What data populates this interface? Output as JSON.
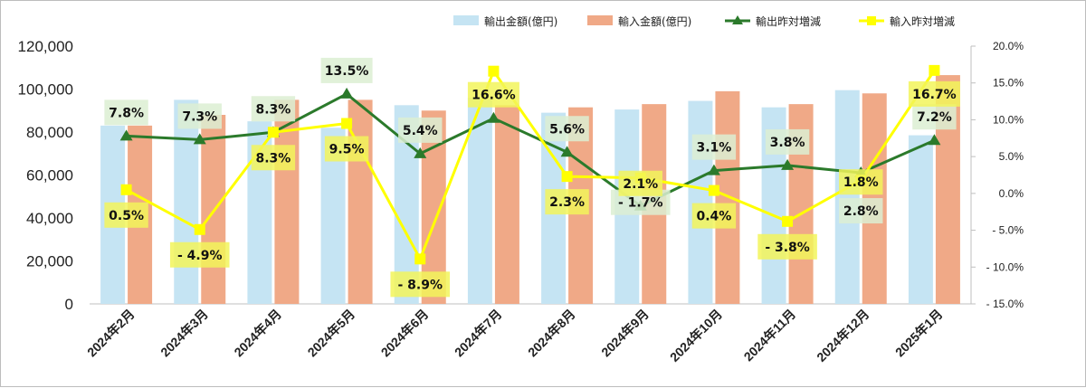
{
  "chart_data": {
    "type": "bar",
    "categories": [
      "2024年2月",
      "2024年3月",
      "2024年4月",
      "2024年5月",
      "2024年6月",
      "2024年7月",
      "2024年8月",
      "2024年9月",
      "2024年10月",
      "2024年11月",
      "2024年12月",
      "2025年1月"
    ],
    "series": [
      {
        "name": "輸出金額(億円)",
        "type": "bar",
        "axis": "left",
        "color": "#c5e4f3",
        "values": [
          83000,
          95000,
          85000,
          82000,
          92500,
          96000,
          89000,
          90500,
          94500,
          91500,
          99500,
          78500
        ]
      },
      {
        "name": "輸入金額(億円)",
        "type": "bar",
        "axis": "left",
        "color": "#f0a987",
        "values": [
          83000,
          88000,
          95000,
          95000,
          90000,
          92500,
          91500,
          93000,
          99000,
          93000,
          98000,
          106500
        ]
      },
      {
        "name": "輸出昨対増減",
        "type": "line",
        "axis": "right",
        "color": "#2b7a2b",
        "marker": "triangle",
        "values": [
          7.8,
          7.3,
          8.3,
          13.5,
          5.4,
          10.2,
          5.6,
          -1.7,
          3.1,
          3.8,
          2.8,
          7.2
        ],
        "labels": [
          "7.8%",
          "7.3%",
          "8.3%",
          "13.5%",
          "5.4%",
          "",
          "5.6%",
          "- 1.7%",
          "3.1%",
          "3.8%",
          "2.8%",
          "7.2%"
        ]
      },
      {
        "name": "輸入昨対増減",
        "type": "line",
        "axis": "right",
        "color": "#ffff00",
        "marker": "square",
        "values": [
          0.5,
          -4.9,
          8.3,
          9.5,
          -8.9,
          16.6,
          2.3,
          2.1,
          0.4,
          -3.8,
          1.8,
          16.7
        ],
        "labels": [
          "0.5%",
          "- 4.9%",
          "8.3%",
          "9.5%",
          "- 8.9%",
          "16.6%",
          "2.3%",
          "2.1%",
          "0.4%",
          "- 3.8%",
          "1.8%",
          "16.7%"
        ]
      }
    ],
    "y_left": {
      "ylim": [
        0,
        120000
      ],
      "ticks": [
        "0",
        "20,000",
        "40,000",
        "60,000",
        "80,000",
        "100,000",
        "120,000"
      ]
    },
    "y_right": {
      "ylim": [
        -15,
        20
      ],
      "ticks": [
        "- 15.0%",
        "- 10.0%",
        "- 5.0%",
        "0.0%",
        "5.0%",
        "10.0%",
        "15.0%",
        "20.0%"
      ]
    },
    "legend_position": "top-right",
    "grid": false,
    "title": "",
    "xlabel": "",
    "ylabel": ""
  }
}
